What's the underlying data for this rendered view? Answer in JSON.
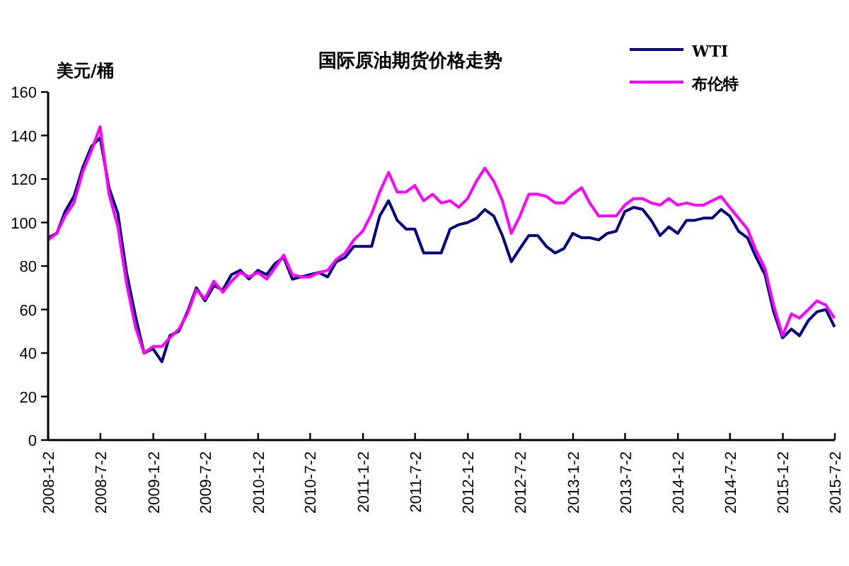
{
  "chart_data": {
    "type": "line",
    "title": "国际原油期货价格走势",
    "ylabel": "美元/桶",
    "x": [
      "2008-01-02",
      "2008-02",
      "2008-03",
      "2008-04",
      "2008-05",
      "2008-06",
      "2008-07",
      "2008-08",
      "2008-09",
      "2008-10",
      "2008-11",
      "2008-12",
      "2009-01",
      "2009-02",
      "2009-03",
      "2009-04",
      "2009-05",
      "2009-06",
      "2009-07",
      "2009-08",
      "2009-09",
      "2009-10",
      "2009-11",
      "2009-12",
      "2010-01",
      "2010-02",
      "2010-03",
      "2010-04",
      "2010-05",
      "2010-06",
      "2010-07",
      "2010-08",
      "2010-09",
      "2010-10",
      "2010-11",
      "2010-12",
      "2011-01",
      "2011-02",
      "2011-03",
      "2011-04",
      "2011-05",
      "2011-06",
      "2011-07",
      "2011-08",
      "2011-09",
      "2011-10",
      "2011-11",
      "2011-12",
      "2012-01",
      "2012-02",
      "2012-03",
      "2012-04",
      "2012-05",
      "2012-06",
      "2012-07",
      "2012-08",
      "2012-09",
      "2012-10",
      "2012-11",
      "2012-12",
      "2013-01",
      "2013-02",
      "2013-03",
      "2013-04",
      "2013-05",
      "2013-06",
      "2013-07",
      "2013-08",
      "2013-09",
      "2013-10",
      "2013-11",
      "2013-12",
      "2014-01",
      "2014-02",
      "2014-03",
      "2014-04",
      "2014-05",
      "2014-06",
      "2014-07",
      "2014-08",
      "2014-09",
      "2014-10",
      "2014-11",
      "2014-12",
      "2015-01",
      "2015-02",
      "2015-03",
      "2015-04",
      "2015-05",
      "2015-06",
      "2015-07"
    ],
    "series": [
      {
        "name": "WTI",
        "color": "#000080",
        "values": [
          93,
          95,
          105,
          112,
          125,
          135,
          139,
          116,
          104,
          77,
          57,
          40,
          42,
          36,
          48,
          50,
          59,
          70,
          64,
          71,
          69,
          76,
          78,
          74,
          78,
          76,
          81,
          84,
          74,
          75,
          76,
          77,
          75,
          82,
          84,
          89,
          89,
          89,
          103,
          110,
          101,
          97,
          97,
          86,
          86,
          86,
          97,
          99,
          100,
          102,
          106,
          103,
          94,
          82,
          88,
          94,
          94,
          89,
          86,
          88,
          95,
          93,
          93,
          92,
          95,
          96,
          105,
          107,
          106,
          101,
          94,
          98,
          95,
          101,
          101,
          102,
          102,
          106,
          103,
          96,
          93,
          84,
          76,
          59,
          47,
          51,
          48,
          55,
          59,
          60,
          52
        ]
      },
      {
        "name": "布伦特",
        "color": "#ff00ff",
        "values": [
          92,
          95,
          103,
          109,
          123,
          133,
          144,
          113,
          98,
          72,
          52,
          40,
          43,
          43,
          47,
          51,
          58,
          69,
          65,
          73,
          68,
          73,
          77,
          75,
          77,
          74,
          79,
          85,
          76,
          75,
          75,
          77,
          78,
          83,
          86,
          92,
          96,
          104,
          114,
          123,
          114,
          114,
          117,
          110,
          113,
          109,
          110,
          107,
          111,
          119,
          125,
          119,
          110,
          95,
          103,
          113,
          113,
          112,
          109,
          109,
          113,
          116,
          109,
          103,
          103,
          103,
          108,
          111,
          111,
          109,
          108,
          111,
          108,
          109,
          108,
          108,
          110,
          112,
          107,
          102,
          97,
          87,
          79,
          62,
          48,
          58,
          56,
          60,
          64,
          62,
          56
        ]
      }
    ],
    "xlim": [
      "2008-01-02",
      "2015-07-02"
    ],
    "xticks": [
      {
        "value": "2008-01-02",
        "label": "2008-1-2"
      },
      {
        "value": "2008-07-02",
        "label": "2008-7-2"
      },
      {
        "value": "2009-01-02",
        "label": "2009-1-2"
      },
      {
        "value": "2009-07-02",
        "label": "2009-7-2"
      },
      {
        "value": "2010-01-02",
        "label": "2010-1-2"
      },
      {
        "value": "2010-07-02",
        "label": "2010-7-2"
      },
      {
        "value": "2011-01-02",
        "label": "2011-1-2"
      },
      {
        "value": "2011-07-02",
        "label": "2011-7-2"
      },
      {
        "value": "2012-01-02",
        "label": "2012-1-2"
      },
      {
        "value": "2012-07-02",
        "label": "2012-7-2"
      },
      {
        "value": "2013-01-02",
        "label": "2013-1-2"
      },
      {
        "value": "2013-07-02",
        "label": "2013-7-2"
      },
      {
        "value": "2014-01-02",
        "label": "2014-1-2"
      },
      {
        "value": "2014-07-02",
        "label": "2014-7-2"
      },
      {
        "value": "2015-01-02",
        "label": "2015-1-2"
      },
      {
        "value": "2015-07-02",
        "label": "2015-7-2"
      }
    ],
    "ylim": [
      0,
      160
    ],
    "yticks": [
      0,
      20,
      40,
      60,
      80,
      100,
      120,
      140,
      160
    ],
    "legend": "top right",
    "line_style": "solid"
  }
}
